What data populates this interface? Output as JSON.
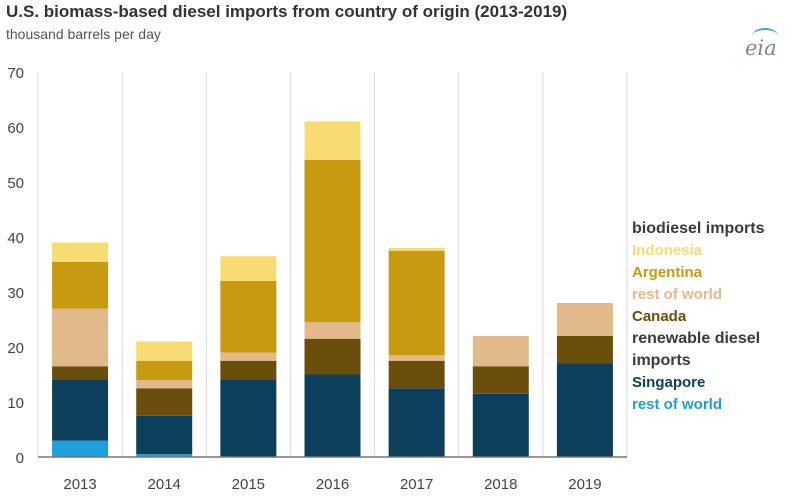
{
  "chart_data": {
    "type": "bar",
    "stacked": true,
    "title": "U.S. biomass-based diesel imports from country of origin (2013-2019)",
    "subtitle": "thousand barrels per day",
    "categories": [
      "2013",
      "2014",
      "2015",
      "2016",
      "2017",
      "2018",
      "2019"
    ],
    "ylim": [
      0,
      70
    ],
    "yticks": [
      0,
      10,
      20,
      30,
      40,
      50,
      60,
      70
    ],
    "grid": "vertical",
    "legend_position": "right",
    "series": [
      {
        "key": "rd_row",
        "name": "rest of world",
        "group": "renewable diesel imports",
        "color": "#1ea0dc",
        "values": [
          3,
          0.5,
          0,
          0,
          0,
          0,
          0
        ]
      },
      {
        "key": "rd_sg",
        "name": "Singapore",
        "group": "renewable diesel imports",
        "color": "#0b3f5c",
        "values": [
          11,
          7,
          14,
          15,
          12.5,
          11.5,
          17
        ]
      },
      {
        "key": "bd_ca",
        "name": "Canada",
        "group": "biodiesel imports",
        "color": "#6b4d0c",
        "values": [
          2.5,
          5,
          3.5,
          6.5,
          5,
          5,
          5
        ]
      },
      {
        "key": "bd_row",
        "name": "rest of world",
        "group": "biodiesel imports",
        "color": "#e2b98a",
        "values": [
          10.5,
          1.5,
          1.5,
          3,
          1,
          5.5,
          6
        ]
      },
      {
        "key": "bd_ar",
        "name": "Argentina",
        "group": "biodiesel imports",
        "color": "#c79a10",
        "values": [
          8.5,
          3.5,
          13,
          29.5,
          19,
          0,
          0
        ]
      },
      {
        "key": "bd_id",
        "name": "Indonesia",
        "group": "biodiesel imports",
        "color": "#f8dc72",
        "values": [
          3.5,
          3.5,
          4.5,
          7,
          0.5,
          0,
          0
        ]
      }
    ]
  },
  "source_logo": "eia",
  "legend": {
    "biodiesel_heading": "biodiesel imports",
    "bd_indonesia": "Indonesia",
    "bd_argentina": "Argentina",
    "bd_row": "rest of world",
    "bd_canada": "Canada",
    "renewable_heading_1": "renewable diesel",
    "renewable_heading_2": "imports",
    "rd_singapore": "Singapore",
    "rd_row": "rest of world"
  }
}
